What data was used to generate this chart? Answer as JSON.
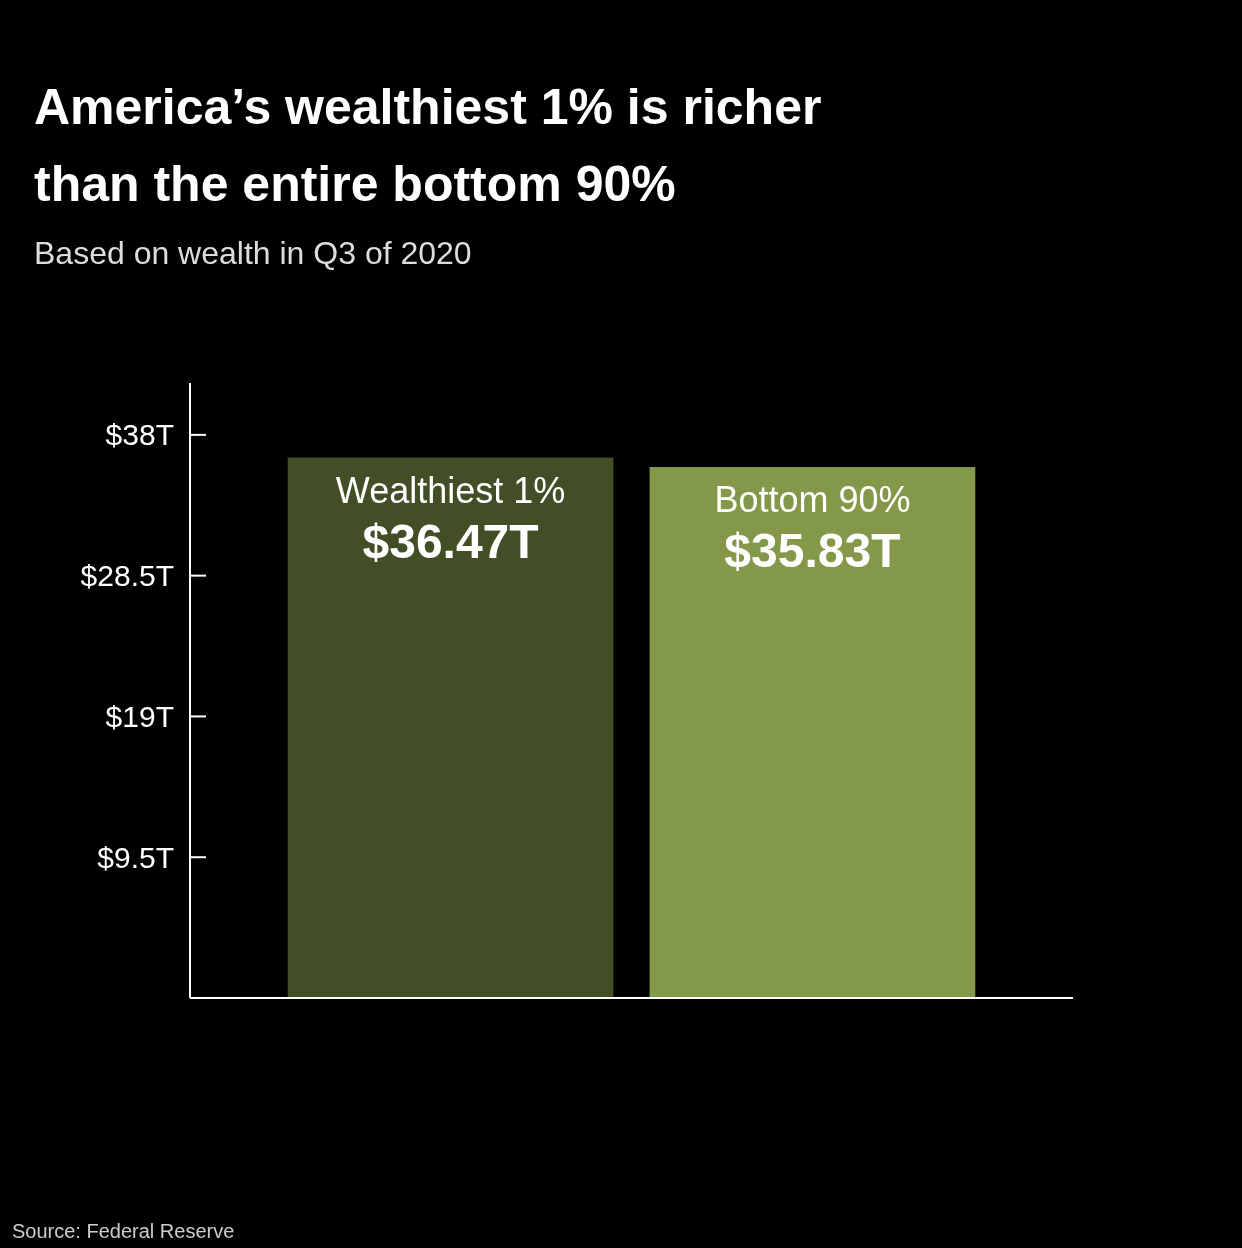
{
  "chart_data": {
    "type": "bar",
    "title": "America’s wealthiest 1% is richer than the entire bottom 90%",
    "subtitle": "Based on wealth in Q3 of 2020",
    "categories": [
      "Wealthiest 1%",
      "Bottom 90%"
    ],
    "values": [
      36.47,
      35.83
    ],
    "colors": [
      "#434e27",
      "#84984a"
    ],
    "value_labels": [
      "$36.47T",
      "$35.83T"
    ],
    "ylim": [
      0,
      41.5
    ],
    "yticks": [
      {
        "value": 9.5,
        "label": "$9.5T"
      },
      {
        "value": 19,
        "label": "$19T"
      },
      {
        "value": 28.5,
        "label": "$28.5T"
      },
      {
        "value": 38,
        "label": "$38T"
      }
    ],
    "grid": false,
    "annotations": [
      "Source: Federal Reserve"
    ]
  }
}
